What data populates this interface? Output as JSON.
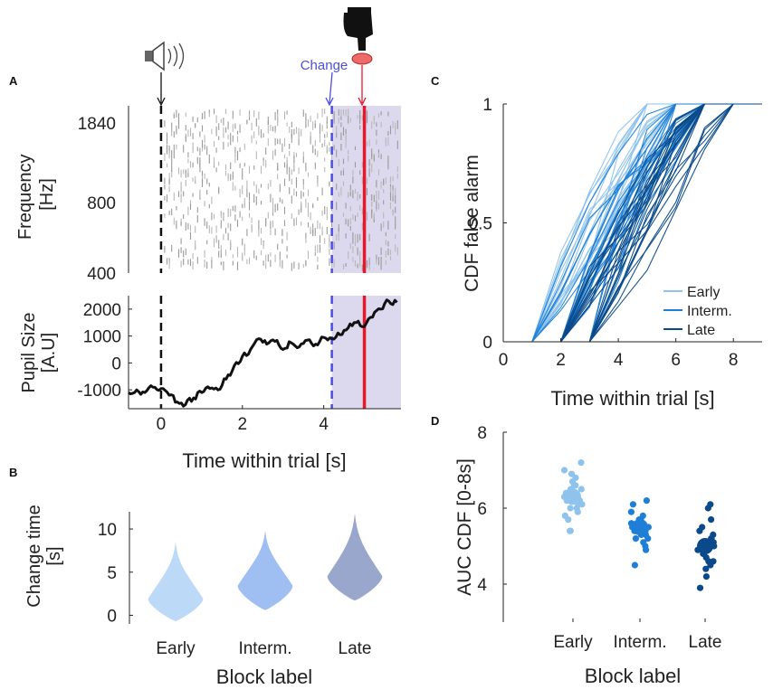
{
  "panels": {
    "a": "A",
    "b": "B",
    "c": "C",
    "d": "D"
  },
  "colors": {
    "early": "#8ec3ee",
    "interm": "#1f7fd6",
    "late": "#0b4a8a",
    "change": "#4b4ee0",
    "response": "#e8172c",
    "shade": "#dcd9ee"
  },
  "icons": {
    "sound": "speaker-icon",
    "press": "pointing-hand-icon"
  },
  "chart_data": [
    {
      "id": "A-top",
      "type": "raster",
      "ylabel": "Frequency\n[Hz]",
      "yticks": [
        "1840",
        "800",
        "400"
      ],
      "xlim": [
        -0.8,
        5.9
      ],
      "events": {
        "sound_onset": 0,
        "change": 4.2,
        "response": 5.0
      },
      "annotation": "Change"
    },
    {
      "id": "A-bottom",
      "type": "line",
      "ylabel": "Pupil Size\n[A.U]",
      "xlabel": "Time within trial [s]",
      "xlim": [
        -0.8,
        5.9
      ],
      "ylim": [
        -1700,
        2500
      ],
      "xticks": [
        0,
        2,
        4
      ],
      "yticks": [
        2000,
        1000,
        0,
        -1000
      ],
      "events": {
        "sound_onset": 0,
        "change": 4.2,
        "response": 5.0
      },
      "x": [
        -0.8,
        -0.6,
        -0.4,
        -0.2,
        0,
        0.2,
        0.4,
        0.6,
        0.8,
        1.0,
        1.2,
        1.4,
        1.6,
        1.8,
        2.0,
        2.2,
        2.4,
        2.6,
        2.8,
        3.0,
        3.2,
        3.4,
        3.6,
        3.8,
        4.0,
        4.2,
        4.4,
        4.6,
        4.8,
        5.0,
        5.2,
        5.4,
        5.6,
        5.8
      ],
      "y": [
        -1100,
        -1000,
        -1100,
        -900,
        -950,
        -1200,
        -1450,
        -1550,
        -1300,
        -1100,
        -950,
        -1000,
        -600,
        -100,
        250,
        500,
        900,
        700,
        800,
        500,
        750,
        600,
        850,
        700,
        950,
        900,
        1050,
        1300,
        1500,
        1350,
        1700,
        2000,
        2300,
        2250
      ]
    },
    {
      "id": "B",
      "type": "violin",
      "ylabel": "Change time\n[s]",
      "xlabel": "Block label",
      "categories": [
        "Early",
        "Interm.",
        "Late"
      ],
      "ylim": [
        -1,
        12
      ],
      "yticks": [
        0,
        5,
        10
      ],
      "series": [
        {
          "name": "Early",
          "min": -0.7,
          "max": 8.5,
          "mode": 2.0
        },
        {
          "name": "Interm.",
          "min": 0.6,
          "max": 9.8,
          "mode": 3.5
        },
        {
          "name": "Late",
          "min": 1.7,
          "max": 11.8,
          "mode": 4.6
        }
      ]
    },
    {
      "id": "C",
      "type": "line",
      "ylabel": "CDF false alarm",
      "xlabel": "Time within trial [s]",
      "xlim": [
        0,
        9
      ],
      "ylim": [
        0,
        1
      ],
      "xticks": [
        0,
        2,
        4,
        6,
        8
      ],
      "yticks": [
        0,
        0.5,
        1
      ],
      "legend": {
        "entries": [
          "Early",
          "Interm.",
          "Late"
        ],
        "placement": "bottom-right"
      },
      "series_groups": [
        {
          "name": "Early",
          "t_start": [
            0.5,
            2.5
          ],
          "t_end": [
            4.5,
            7.0
          ]
        },
        {
          "name": "Interm.",
          "t_start": [
            1.0,
            3.0
          ],
          "t_end": [
            5.5,
            7.5
          ]
        },
        {
          "name": "Late",
          "t_start": [
            1.5,
            3.5
          ],
          "t_end": [
            6.5,
            8.0
          ]
        }
      ]
    },
    {
      "id": "D",
      "type": "scatter",
      "ylabel": "AUC CDF [0-8s]",
      "xlabel": "Block label",
      "categories": [
        "Early",
        "Interm.",
        "Late"
      ],
      "ylim": [
        3,
        8
      ],
      "yticks": [
        4,
        6,
        8
      ],
      "series": [
        {
          "name": "Early",
          "mean": 6.3,
          "values": [
            7.2,
            7.0,
            6.9,
            6.8,
            6.7,
            6.6,
            6.6,
            6.5,
            6.5,
            6.4,
            6.4,
            6.3,
            6.3,
            6.3,
            6.2,
            6.2,
            6.2,
            6.1,
            6.1,
            6.0,
            6.0,
            5.9,
            5.8,
            5.7,
            5.4,
            5.4
          ]
        },
        {
          "name": "Interm.",
          "mean": 5.5,
          "values": [
            6.2,
            6.1,
            5.9,
            5.8,
            5.7,
            5.7,
            5.6,
            5.6,
            5.5,
            5.5,
            5.5,
            5.4,
            5.4,
            5.4,
            5.3,
            5.3,
            5.2,
            5.2,
            5.1,
            5.0,
            4.9,
            4.5
          ]
        },
        {
          "name": "Late",
          "mean": 5.0,
          "values": [
            6.1,
            6.0,
            5.7,
            5.5,
            5.4,
            5.3,
            5.2,
            5.2,
            5.1,
            5.1,
            5.0,
            5.0,
            4.9,
            4.9,
            4.8,
            4.8,
            4.7,
            4.6,
            4.6,
            4.5,
            4.4,
            4.2,
            3.9
          ]
        }
      ]
    }
  ]
}
